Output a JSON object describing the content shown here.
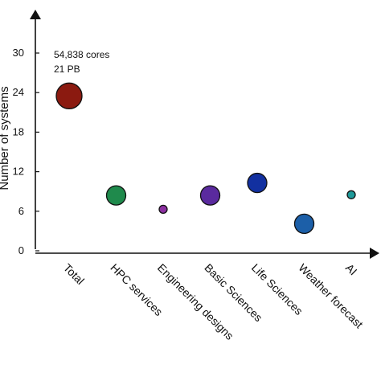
{
  "chart_data": {
    "type": "scatter",
    "ylabel": "Number of systems",
    "xlabel": "",
    "categories": [
      "Total",
      "HPC services",
      "Engineering designs",
      "Basic Sciences",
      "Life Sciences",
      "Weather forecast",
      "AI"
    ],
    "y_ticks": [
      0,
      6,
      12,
      18,
      24,
      30
    ],
    "ylim": [
      0,
      36
    ],
    "grid": false,
    "legend": "none",
    "annotation": {
      "lines": [
        "54,838 cores",
        "21 PB"
      ],
      "category": "Total"
    },
    "series": [
      {
        "points": [
          {
            "category": "Total",
            "value": 23.5,
            "color": "#8b1a10"
          },
          {
            "category": "HPC services",
            "value": 8.4,
            "color": "#1f8a4c"
          },
          {
            "category": "Engineering designs",
            "value": 6.3,
            "color": "#8b2fa0"
          },
          {
            "category": "Basic Sciences",
            "value": 8.4,
            "color": "#5a2a9e"
          },
          {
            "category": "Life Sciences",
            "value": 10.3,
            "color": "#1230a0"
          },
          {
            "category": "Weather forecast",
            "value": 4.1,
            "color": "#1c5fa8"
          },
          {
            "category": "AI",
            "value": 8.5,
            "color": "#1e9a9a"
          }
        ]
      }
    ]
  }
}
